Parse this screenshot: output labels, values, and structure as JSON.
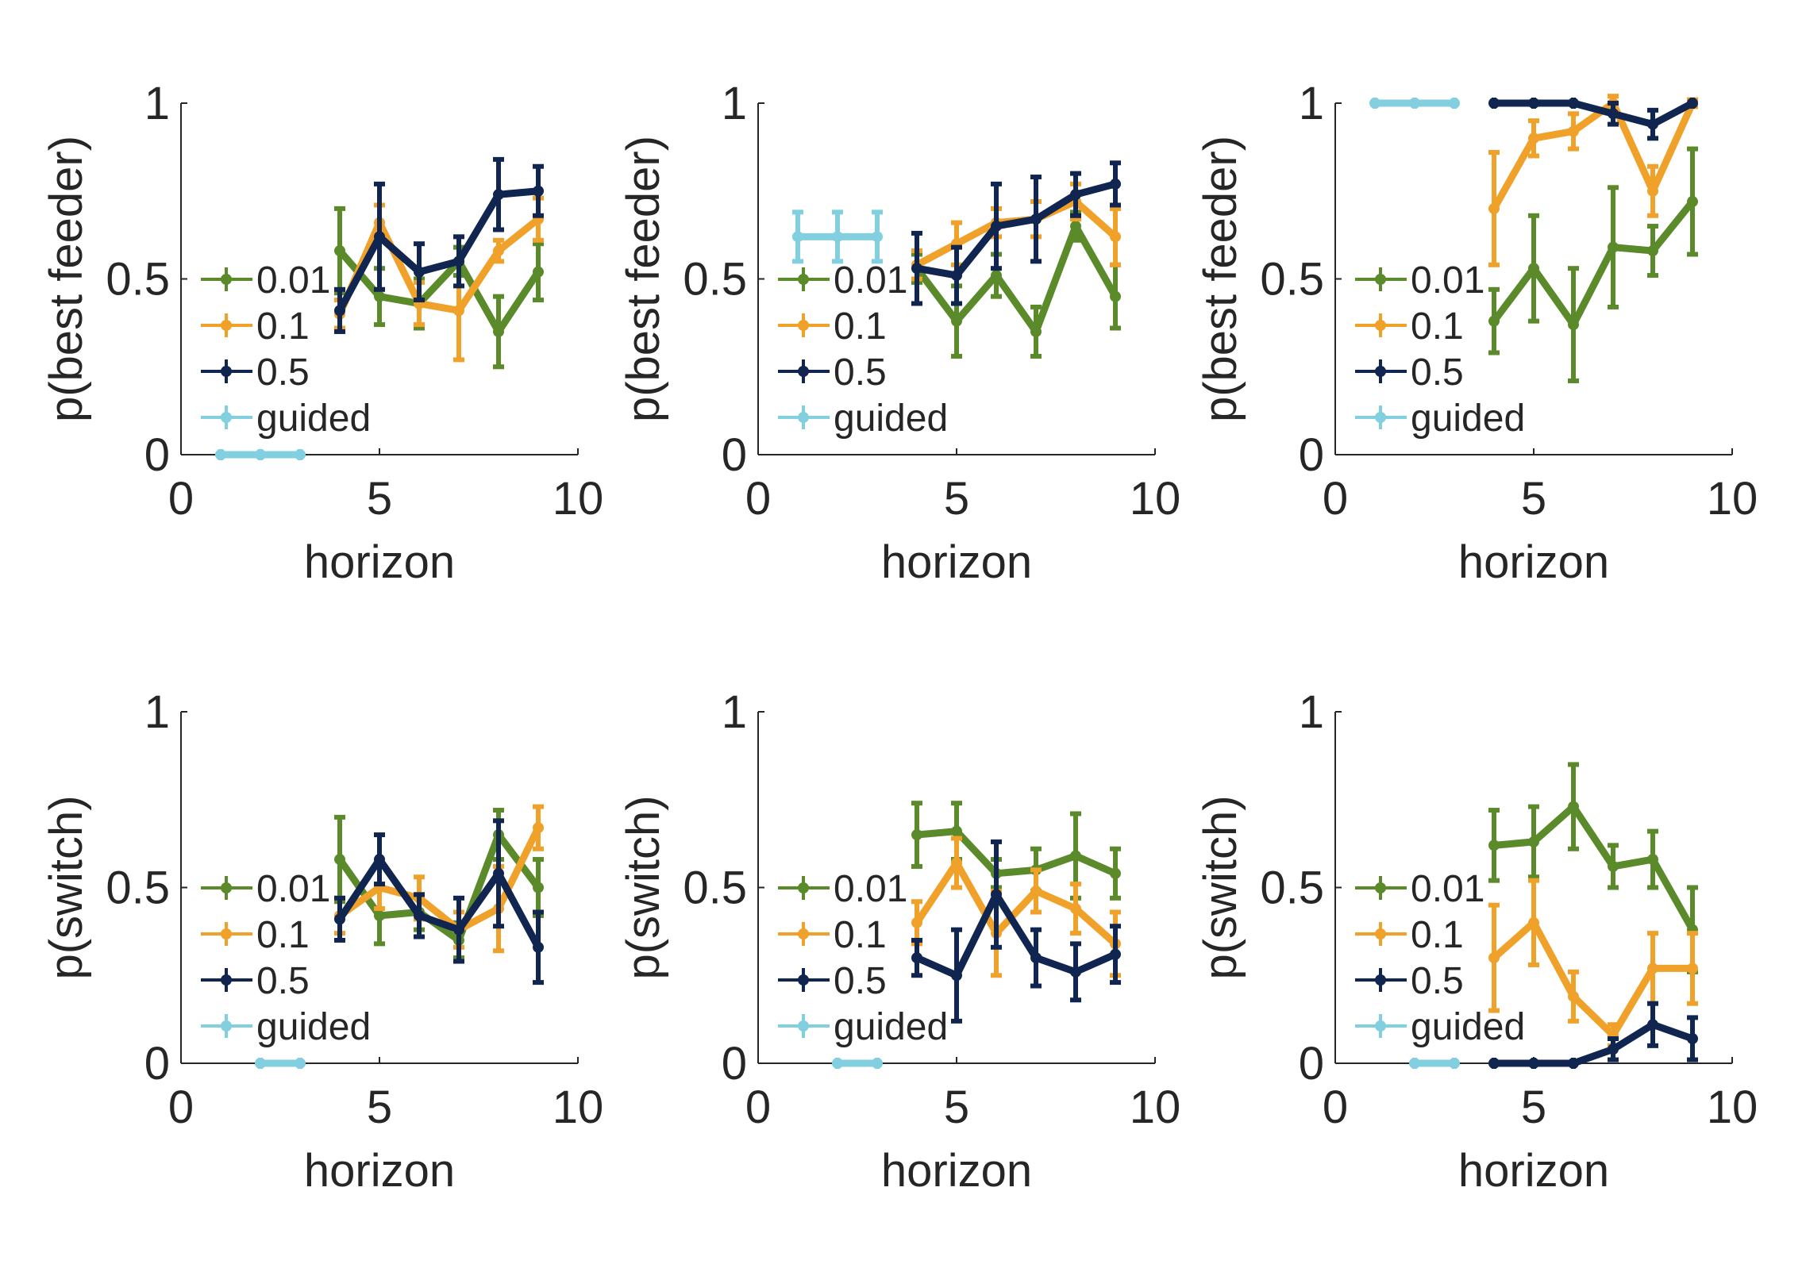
{
  "chart_data": [
    {
      "type": "line",
      "xlabel": "horizon",
      "ylabel": "p(best feeder)",
      "xlim": [
        0,
        10
      ],
      "ylim": [
        0,
        1
      ],
      "xticks": [
        "0",
        "5",
        "10"
      ],
      "yticks": [
        "0",
        "0.5",
        "1"
      ],
      "legend": "left",
      "series": [
        {
          "name": "0.01",
          "color": "#5b8a2a",
          "x": [
            4,
            5,
            6,
            7,
            8,
            9
          ],
          "y": [
            0.58,
            0.45,
            0.43,
            0.55,
            0.35,
            0.52
          ],
          "err": [
            0.12,
            0.08,
            0.07,
            0.04,
            0.1,
            0.08
          ]
        },
        {
          "name": "0.1",
          "color": "#f0a12a",
          "x": [
            4,
            5,
            6,
            7,
            8,
            9
          ],
          "y": [
            0.4,
            0.66,
            0.43,
            0.41,
            0.58,
            0.67
          ],
          "err": [
            0.04,
            0.05,
            0.06,
            0.14,
            0.03,
            0.06
          ]
        },
        {
          "name": "0.5",
          "color": "#102550",
          "x": [
            4,
            5,
            6,
            7,
            8,
            9
          ],
          "y": [
            0.41,
            0.62,
            0.52,
            0.55,
            0.74,
            0.75
          ],
          "err": [
            0.06,
            0.15,
            0.08,
            0.07,
            0.1,
            0.07
          ]
        },
        {
          "name": "guided",
          "color": "#82cfe0",
          "x": [
            1,
            2,
            3
          ],
          "y": [
            0.0,
            0.0,
            0.0
          ],
          "err": [
            0.0,
            0.0,
            0.0
          ]
        }
      ]
    },
    {
      "type": "line",
      "xlabel": "horizon",
      "ylabel": "p(best feeder)",
      "xlim": [
        0,
        10
      ],
      "ylim": [
        0,
        1
      ],
      "xticks": [
        "0",
        "5",
        "10"
      ],
      "yticks": [
        "0",
        "0.5",
        "1"
      ],
      "legend": "left",
      "series": [
        {
          "name": "0.01",
          "color": "#5b8a2a",
          "x": [
            4,
            5,
            6,
            7,
            8,
            9
          ],
          "y": [
            0.53,
            0.38,
            0.51,
            0.35,
            0.65,
            0.45
          ],
          "err": [
            0.04,
            0.1,
            0.06,
            0.07,
            0.04,
            0.09
          ]
        },
        {
          "name": "0.1",
          "color": "#f0a12a",
          "x": [
            4,
            5,
            6,
            7,
            8,
            9
          ],
          "y": [
            0.54,
            0.6,
            0.66,
            0.67,
            0.72,
            0.62
          ],
          "err": [
            0.04,
            0.06,
            0.04,
            0.05,
            0.05,
            0.08
          ]
        },
        {
          "name": "0.5",
          "color": "#102550",
          "x": [
            4,
            5,
            6,
            7,
            8,
            9
          ],
          "y": [
            0.53,
            0.51,
            0.65,
            0.67,
            0.74,
            0.77
          ],
          "err": [
            0.1,
            0.08,
            0.12,
            0.12,
            0.06,
            0.06
          ]
        },
        {
          "name": "guided",
          "color": "#82cfe0",
          "x": [
            1,
            2,
            3
          ],
          "y": [
            0.62,
            0.62,
            0.62
          ],
          "err": [
            0.07,
            0.07,
            0.07
          ]
        }
      ]
    },
    {
      "type": "line",
      "xlabel": "horizon",
      "ylabel": "p(best feeder)",
      "xlim": [
        0,
        10
      ],
      "ylim": [
        0,
        1
      ],
      "xticks": [
        "0",
        "5",
        "10"
      ],
      "yticks": [
        "0",
        "0.5",
        "1"
      ],
      "legend": "left",
      "series": [
        {
          "name": "0.01",
          "color": "#5b8a2a",
          "x": [
            4,
            5,
            6,
            7,
            8,
            9
          ],
          "y": [
            0.38,
            0.53,
            0.37,
            0.59,
            0.58,
            0.72
          ],
          "err": [
            0.09,
            0.15,
            0.16,
            0.17,
            0.07,
            0.15
          ]
        },
        {
          "name": "0.1",
          "color": "#f0a12a",
          "x": [
            4,
            5,
            6,
            7,
            8,
            9
          ],
          "y": [
            0.7,
            0.9,
            0.92,
            1.0,
            0.75,
            1.0
          ],
          "err": [
            0.16,
            0.05,
            0.05,
            0.02,
            0.07,
            0.01
          ]
        },
        {
          "name": "0.5",
          "color": "#102550",
          "x": [
            4,
            5,
            6,
            7,
            8,
            9
          ],
          "y": [
            1.0,
            1.0,
            1.0,
            0.97,
            0.94,
            1.0
          ],
          "err": [
            0.0,
            0.0,
            0.0,
            0.03,
            0.04,
            0.0
          ]
        },
        {
          "name": "guided",
          "color": "#82cfe0",
          "x": [
            1,
            2,
            3
          ],
          "y": [
            1.0,
            1.0,
            1.0
          ],
          "err": [
            0.0,
            0.0,
            0.0
          ]
        }
      ]
    },
    {
      "type": "line",
      "xlabel": "horizon",
      "ylabel": "p(switch)",
      "xlim": [
        0,
        10
      ],
      "ylim": [
        0,
        1
      ],
      "xticks": [
        "0",
        "5",
        "10"
      ],
      "yticks": [
        "0",
        "0.5",
        "1"
      ],
      "legend": "left",
      "series": [
        {
          "name": "0.01",
          "color": "#5b8a2a",
          "x": [
            4,
            5,
            6,
            7,
            8,
            9
          ],
          "y": [
            0.58,
            0.42,
            0.43,
            0.35,
            0.65,
            0.5
          ],
          "err": [
            0.12,
            0.08,
            0.05,
            0.05,
            0.07,
            0.08
          ]
        },
        {
          "name": "0.1",
          "color": "#f0a12a",
          "x": [
            4,
            5,
            6,
            7,
            8,
            9
          ],
          "y": [
            0.42,
            0.5,
            0.47,
            0.38,
            0.44,
            0.67
          ],
          "err": [
            0.05,
            0.06,
            0.06,
            0.05,
            0.12,
            0.06
          ]
        },
        {
          "name": "0.5",
          "color": "#102550",
          "x": [
            4,
            5,
            6,
            7,
            8,
            9
          ],
          "y": [
            0.41,
            0.58,
            0.42,
            0.38,
            0.54,
            0.33
          ],
          "err": [
            0.06,
            0.07,
            0.06,
            0.09,
            0.15,
            0.1
          ]
        },
        {
          "name": "guided",
          "color": "#82cfe0",
          "x": [
            2,
            3
          ],
          "y": [
            0.0,
            0.0
          ],
          "err": [
            0.0,
            0.0
          ]
        }
      ]
    },
    {
      "type": "line",
      "xlabel": "horizon",
      "ylabel": "p(switch)",
      "xlim": [
        0,
        10
      ],
      "ylim": [
        0,
        1
      ],
      "xticks": [
        "0",
        "5",
        "10"
      ],
      "yticks": [
        "0",
        "0.5",
        "1"
      ],
      "legend": "left",
      "series": [
        {
          "name": "0.01",
          "color": "#5b8a2a",
          "x": [
            4,
            5,
            6,
            7,
            8,
            9
          ],
          "y": [
            0.65,
            0.66,
            0.54,
            0.55,
            0.59,
            0.54
          ],
          "err": [
            0.09,
            0.08,
            0.04,
            0.06,
            0.12,
            0.07
          ]
        },
        {
          "name": "0.1",
          "color": "#f0a12a",
          "x": [
            4,
            5,
            6,
            7,
            8,
            9
          ],
          "y": [
            0.4,
            0.57,
            0.37,
            0.49,
            0.44,
            0.34
          ],
          "err": [
            0.06,
            0.07,
            0.12,
            0.06,
            0.07,
            0.09
          ]
        },
        {
          "name": "0.5",
          "color": "#102550",
          "x": [
            4,
            5,
            6,
            7,
            8,
            9
          ],
          "y": [
            0.3,
            0.25,
            0.48,
            0.3,
            0.26,
            0.31
          ],
          "err": [
            0.05,
            0.13,
            0.15,
            0.08,
            0.08,
            0.08
          ]
        },
        {
          "name": "guided",
          "color": "#82cfe0",
          "x": [
            2,
            3
          ],
          "y": [
            0.0,
            0.0
          ],
          "err": [
            0.0,
            0.0
          ]
        }
      ]
    },
    {
      "type": "line",
      "xlabel": "horizon",
      "ylabel": "p(switch)",
      "xlim": [
        0,
        10
      ],
      "ylim": [
        0,
        1
      ],
      "xticks": [
        "0",
        "5",
        "10"
      ],
      "yticks": [
        "0",
        "0.5",
        "1"
      ],
      "legend": "left",
      "series": [
        {
          "name": "0.01",
          "color": "#5b8a2a",
          "x": [
            4,
            5,
            6,
            7,
            8,
            9
          ],
          "y": [
            0.62,
            0.63,
            0.73,
            0.56,
            0.58,
            0.38
          ],
          "err": [
            0.1,
            0.1,
            0.12,
            0.06,
            0.08,
            0.12
          ]
        },
        {
          "name": "0.1",
          "color": "#f0a12a",
          "x": [
            4,
            5,
            6,
            7,
            8,
            9
          ],
          "y": [
            0.3,
            0.4,
            0.19,
            0.08,
            0.27,
            0.27
          ],
          "err": [
            0.15,
            0.12,
            0.07,
            0.03,
            0.1,
            0.1
          ]
        },
        {
          "name": "0.5",
          "color": "#102550",
          "x": [
            4,
            5,
            6,
            7,
            8,
            9
          ],
          "y": [
            0.0,
            0.0,
            0.0,
            0.04,
            0.11,
            0.07
          ],
          "err": [
            0.0,
            0.0,
            0.0,
            0.03,
            0.06,
            0.06
          ]
        },
        {
          "name": "guided",
          "color": "#82cfe0",
          "x": [
            2,
            3
          ],
          "y": [
            0.0,
            0.0
          ],
          "err": [
            0.0,
            0.0
          ]
        }
      ]
    }
  ]
}
